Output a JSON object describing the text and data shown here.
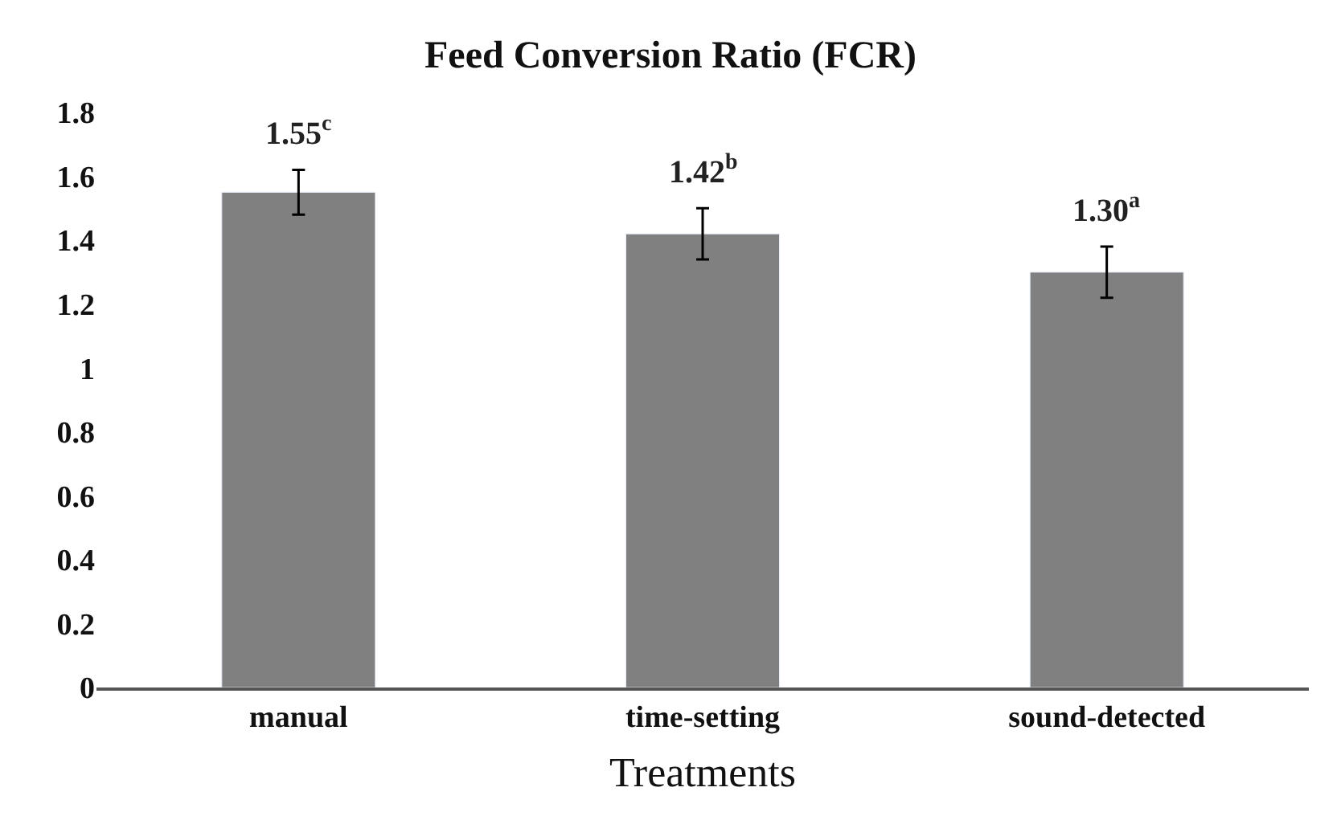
{
  "chart_data": {
    "type": "bar",
    "title": "Feed Conversion Ratio (FCR)",
    "xlabel": "Treatments",
    "categories": [
      "manual",
      "time-setting",
      "sound-detected"
    ],
    "values": [
      1.55,
      1.42,
      1.3
    ],
    "errors": [
      0.07,
      0.08,
      0.08
    ],
    "value_labels": [
      "1.55$^{c}$",
      "1.42$^{b}$",
      "1.30$^{a}$"
    ],
    "color": "#808080",
    "ylim": [
      0,
      1.8
    ],
    "yticks": [
      0,
      0.2,
      0.4,
      0.6,
      0.8,
      1,
      1.2,
      1.4,
      1.6,
      1.8
    ],
    "legend": false
  }
}
